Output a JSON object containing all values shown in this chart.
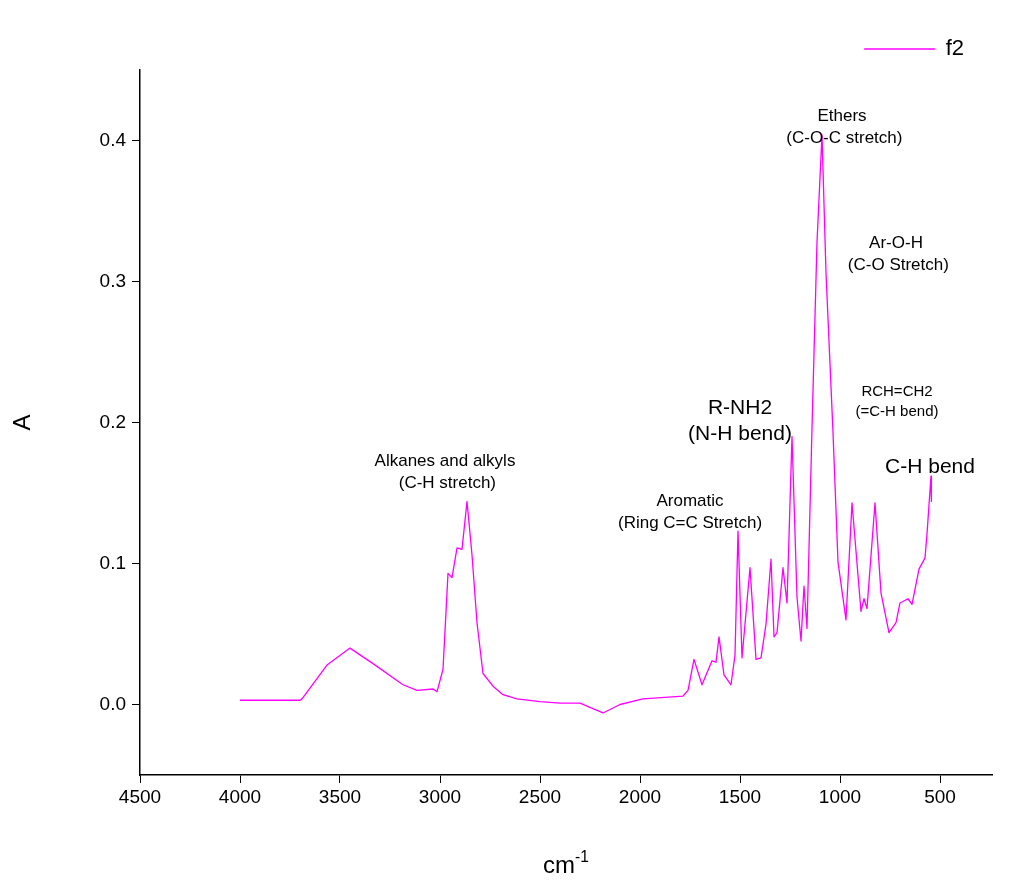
{
  "chart_data": {
    "type": "line",
    "xlabel": "cm$^{-1}$",
    "ylabel": "A",
    "legend": "top right",
    "grid": false,
    "marker": "none",
    "line_style": "solid",
    "xlim": [
      4500,
      240
    ],
    "xticks": [
      4500,
      4000,
      3500,
      3000,
      2500,
      2000,
      1500,
      1000,
      500
    ],
    "ylim": [
      -0.05,
      0.45
    ],
    "yticks": [
      {
        "value": 0,
        "label": "0.0"
      },
      0.1,
      0.2,
      0.3,
      0.4
    ],
    "x": [
      4000,
      3850,
      3700,
      3690,
      3565,
      3450,
      3335,
      3185,
      3115,
      3035,
      3015,
      2985,
      2960,
      2940,
      2915,
      2890,
      2865,
      2840,
      2815,
      2785,
      2735,
      2685,
      2615,
      2500,
      2400,
      2300,
      2185,
      2100,
      1985,
      1785,
      1760,
      1730,
      1690,
      1640,
      1620,
      1605,
      1580,
      1545,
      1525,
      1510,
      1490,
      1450,
      1420,
      1395,
      1370,
      1345,
      1330,
      1315,
      1285,
      1265,
      1240,
      1215,
      1195,
      1180,
      1165,
      1140,
      1115,
      1090,
      1070,
      1035,
      1010,
      970,
      940,
      895,
      880,
      865,
      825,
      795,
      755,
      720,
      700,
      660,
      640,
      605,
      575,
      565,
      545,
      543
    ],
    "series": [
      {
        "name": "f2",
        "color": "#ff00ff",
        "values": [
          0.003,
          0.003,
          0.003,
          0.004,
          0.028,
          0.04,
          0.029,
          0.014,
          0.01,
          0.011,
          0.009,
          0.025,
          0.093,
          0.09,
          0.111,
          0.11,
          0.144,
          0.106,
          0.058,
          0.022,
          0.013,
          0.007,
          0.004,
          0.002,
          0.001,
          0.001,
          -0.006,
          0.0,
          0.004,
          0.006,
          0.01,
          0.032,
          0.014,
          0.031,
          0.03,
          0.048,
          0.021,
          0.014,
          0.035,
          0.123,
          0.033,
          0.097,
          0.032,
          0.033,
          0.057,
          0.103,
          0.048,
          0.051,
          0.097,
          0.072,
          0.19,
          0.076,
          0.045,
          0.084,
          0.054,
          0.196,
          0.328,
          0.404,
          0.306,
          0.193,
          0.101,
          0.06,
          0.143,
          0.066,
          0.075,
          0.068,
          0.143,
          0.079,
          0.051,
          0.058,
          0.072,
          0.075,
          0.071,
          0.096,
          0.104,
          0.121,
          0.162,
          0.144
        ]
      }
    ],
    "annotations": [
      "Alkanes and alkyls\n (C-H stretch)",
      "Aromatic\n(Ring C=C Stretch)",
      "R-NH2\n(N-H bend)",
      "Ethers\n (C-O-C stretch)",
      "Ar-O-H\n (C-O Stretch)",
      "RCH=CH2\n(=C-H bend)",
      "C-H bend"
    ]
  }
}
